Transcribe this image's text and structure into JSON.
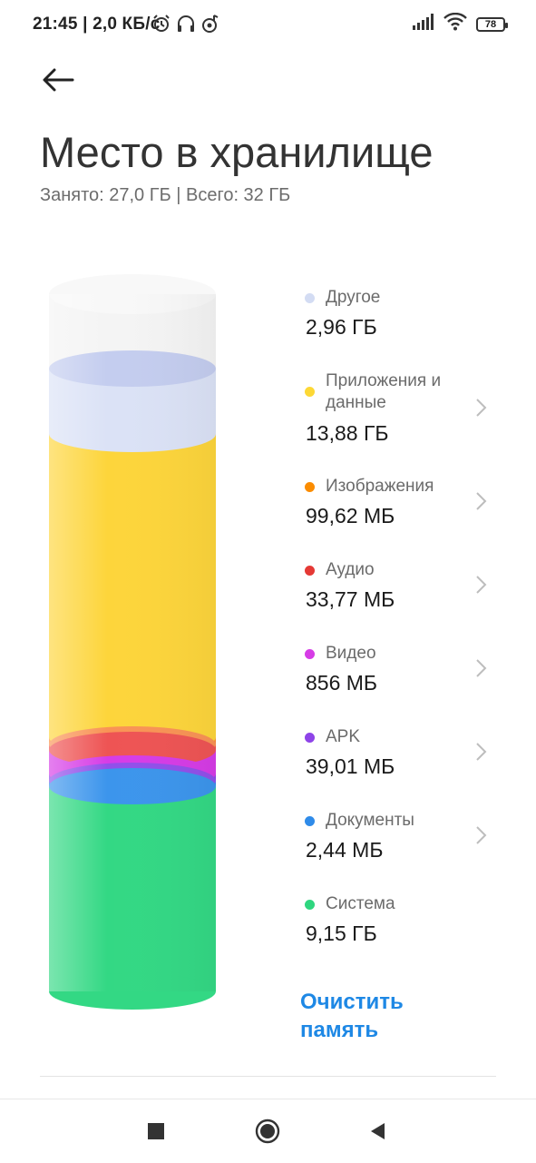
{
  "status_bar": {
    "time_speed": "21:45 | 2,0 КБ/с",
    "battery": "78"
  },
  "header": {
    "title": "Место в хранилище",
    "subtitle": "Занято: 27,0 ГБ | Всего: 32 ГБ"
  },
  "storage": {
    "items": [
      {
        "label": "Другое",
        "value": "2,96 ГБ",
        "color": "#d3dcf3"
      },
      {
        "label": "Приложения и данные",
        "value": "13,88 ГБ",
        "color": "#fdd835"
      },
      {
        "label": "Изображения",
        "value": "99,62 МБ",
        "color": "#fb8c00"
      },
      {
        "label": "Аудио",
        "value": "33,77 МБ",
        "color": "#e53935"
      },
      {
        "label": "Видео",
        "value": "856 МБ",
        "color": "#d63ce6"
      },
      {
        "label": "APK",
        "value": "39,01 МБ",
        "color": "#8e44e8"
      },
      {
        "label": "Документы",
        "value": "2,44 МБ",
        "color": "#2f8be9"
      },
      {
        "label": "Система",
        "value": "9,15 ГБ",
        "color": "#2fd67f"
      }
    ]
  },
  "actions": {
    "clean_button": "Очистить память"
  }
}
